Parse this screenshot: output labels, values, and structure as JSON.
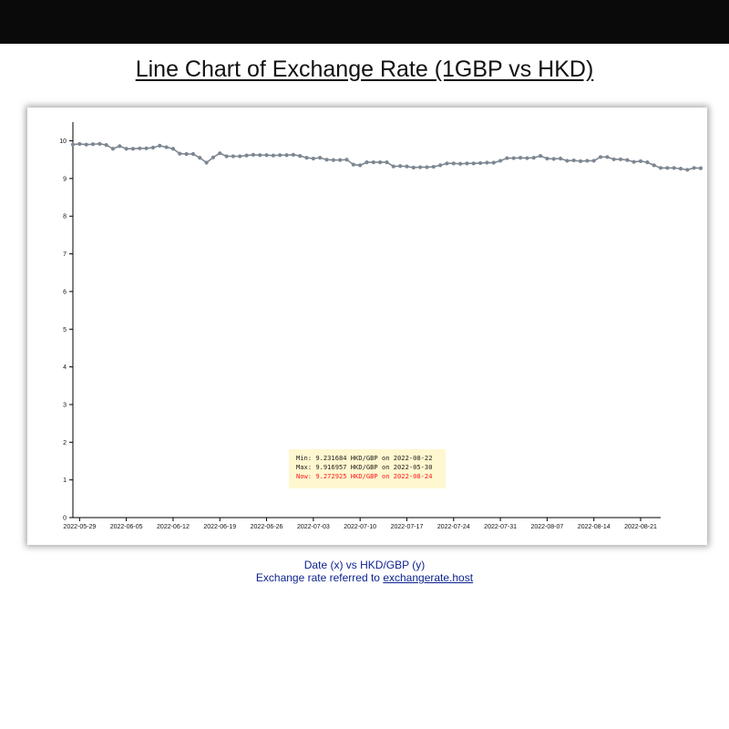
{
  "page": {
    "title": "Line Chart of Exchange Rate (1GBP vs HKD)",
    "footer_line1": "Date (x) vs HKD/GBP (y)",
    "footer_prefix": "Exchange rate referred to ",
    "footer_link": "exchangerate.host"
  },
  "stats": {
    "min": "Min: 9.231684 HKD/GBP on 2022-08-22",
    "max": "Max: 9.916957 HKD/GBP on 2022-05-30",
    "now": "Now: 9.272925 HKD/GBP on 2022-08-24"
  },
  "colors": {
    "line": "#7d8791",
    "header_bar": "#0a0a0a",
    "stats_bg": "#fff7cf",
    "now_text": "#ff1a1a",
    "footer_text": "#0a1f8f"
  },
  "chart_data": {
    "type": "line",
    "title": "Line Chart of Exchange Rate (1GBP vs HKD)",
    "xlabel": "",
    "ylabel": "",
    "start_date": "2022-05-28",
    "x_ticks": [
      "2022-05-29",
      "2022-06-05",
      "2022-06-12",
      "2022-06-19",
      "2022-06-26",
      "2022-07-03",
      "2022-07-10",
      "2022-07-17",
      "2022-07-24",
      "2022-07-31",
      "2022-08-07",
      "2022-08-14",
      "2022-08-21"
    ],
    "y_ticks": [
      0,
      1,
      2,
      3,
      4,
      5,
      6,
      7,
      8,
      9,
      10
    ],
    "ylim": [
      0,
      10.4
    ],
    "xlim": [
      "2022-05-28",
      "2022-08-24"
    ],
    "grid": false,
    "series": [
      {
        "values": [
          9.9,
          9.917,
          9.9,
          9.91,
          9.92,
          9.89,
          9.79,
          9.86,
          9.79,
          9.79,
          9.8,
          9.8,
          9.82,
          9.87,
          9.83,
          9.79,
          9.66,
          9.65,
          9.65,
          9.55,
          9.42,
          9.56,
          9.67,
          9.59,
          9.59,
          9.59,
          9.61,
          9.63,
          9.62,
          9.62,
          9.61,
          9.62,
          9.62,
          9.63,
          9.6,
          9.55,
          9.53,
          9.55,
          9.5,
          9.49,
          9.49,
          9.5,
          9.37,
          9.35,
          9.43,
          9.43,
          9.43,
          9.43,
          9.32,
          9.33,
          9.32,
          9.29,
          9.3,
          9.3,
          9.31,
          9.35,
          9.4,
          9.4,
          9.39,
          9.4,
          9.4,
          9.41,
          9.42,
          9.42,
          9.47,
          9.54,
          9.54,
          9.55,
          9.54,
          9.55,
          9.6,
          9.53,
          9.52,
          9.53,
          9.47,
          9.48,
          9.46,
          9.47,
          9.47,
          9.57,
          9.57,
          9.51,
          9.51,
          9.49,
          9.44,
          9.46,
          9.43,
          9.35,
          9.28,
          9.28,
          9.28,
          9.26,
          9.231684,
          9.28,
          9.272925
        ]
      }
    ]
  }
}
